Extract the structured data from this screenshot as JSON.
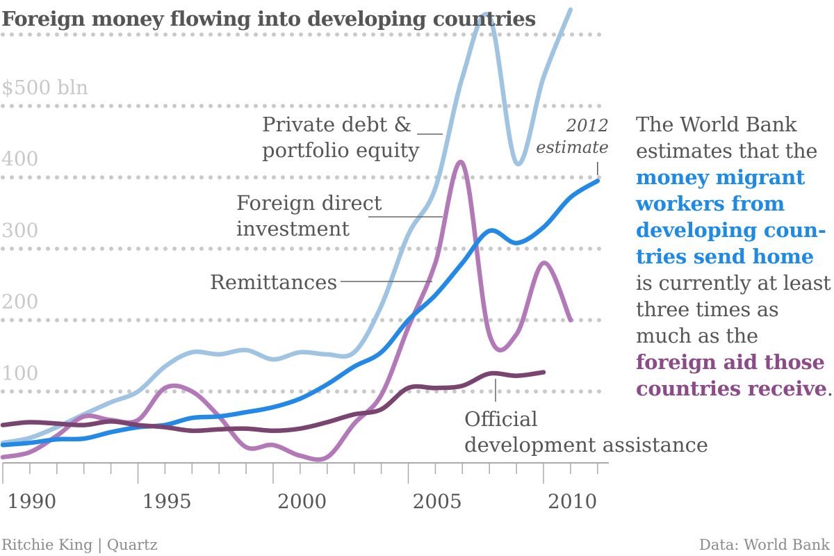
{
  "title": "Foreign money flowing into developing countries",
  "chart_data": {
    "type": "line",
    "title": "Foreign money flowing into developing countries",
    "xlim": [
      1990,
      2012.5
    ],
    "ylim": [
      0,
      630
    ],
    "y_ticks": [
      {
        "value": 100,
        "label": "100"
      },
      {
        "value": 200,
        "label": "200"
      },
      {
        "value": 300,
        "label": "300"
      },
      {
        "value": 400,
        "label": "400"
      },
      {
        "value": 500,
        "label": "$500 bln"
      }
    ],
    "x_ticks": [
      1990,
      1995,
      2000,
      2005,
      2010
    ],
    "gridlines": [
      100,
      200,
      300,
      400,
      500,
      600
    ],
    "grid": "dotted horizontal",
    "series": [
      {
        "name": "Private debt & portfolio equity",
        "color": "#9fc3e2",
        "x": [
          1990,
          1991,
          1992,
          1993,
          1994,
          1995,
          1996,
          1997,
          1998,
          1999,
          2000,
          2001,
          2002,
          2003,
          2004,
          2005,
          2006,
          2007,
          2008,
          2009,
          2010,
          2011
        ],
        "y": [
          28,
          35,
          50,
          68,
          85,
          100,
          135,
          155,
          152,
          158,
          145,
          155,
          152,
          155,
          220,
          320,
          385,
          540,
          625,
          420,
          540,
          635
        ]
      },
      {
        "name": "Foreign direct investment",
        "color": "#b378b8",
        "x": [
          1990,
          1991,
          1992,
          1993,
          1994,
          1995,
          1996,
          1997,
          1998,
          1999,
          2000,
          2001,
          2002,
          2003,
          2004,
          2005,
          2006,
          2007,
          2008,
          2009,
          2010,
          2011
        ],
        "y": [
          8,
          15,
          38,
          65,
          60,
          60,
          105,
          100,
          65,
          22,
          25,
          10,
          8,
          55,
          95,
          190,
          280,
          420,
          180,
          180,
          280,
          200
        ]
      },
      {
        "name": "Remittances",
        "color": "#2489e6",
        "x": [
          1990,
          1991,
          1992,
          1993,
          1994,
          1995,
          1996,
          1997,
          1998,
          1999,
          2000,
          2001,
          2002,
          2003,
          2004,
          2005,
          2006,
          2007,
          2008,
          2009,
          2010,
          2011,
          2012
        ],
        "y": [
          25,
          28,
          33,
          34,
          43,
          50,
          53,
          63,
          65,
          71,
          78,
          90,
          110,
          135,
          155,
          200,
          235,
          280,
          325,
          308,
          330,
          372,
          395
        ]
      },
      {
        "name": "Official development assistance",
        "color": "#7a4470",
        "x": [
          1990,
          1991,
          1992,
          1993,
          1994,
          1995,
          1996,
          1997,
          1998,
          1999,
          2000,
          2001,
          2002,
          2003,
          2004,
          2005,
          2006,
          2007,
          2008,
          2009,
          2010
        ],
        "y": [
          53,
          57,
          55,
          53,
          58,
          53,
          50,
          45,
          47,
          48,
          45,
          48,
          57,
          68,
          75,
          105,
          105,
          108,
          125,
          122,
          127
        ]
      }
    ],
    "series_labels": [
      {
        "text": [
          "Private debt &",
          "portfolio equity"
        ],
        "x": 2006.5,
        "y": 460
      },
      {
        "text": [
          "Foreign direct",
          "investment"
        ],
        "x": 2006.3,
        "y": 350
      },
      {
        "text": [
          "Remittances"
        ],
        "x": 2006.0,
        "y": 250
      },
      {
        "text": [
          "Official",
          "development assistance"
        ],
        "x": 2008.5,
        "y": 122
      }
    ],
    "annotations": [
      {
        "text": [
          "2012",
          "estimate"
        ],
        "x": 2012,
        "y": 395
      }
    ]
  },
  "annotation": {
    "part1": "The World Bank estimates that the",
    "highlight1": "money migrant workers from developing coun­tries send home",
    "part2": "is currently at least three times as much as the",
    "highlight2": "foreign aid those countries receive",
    "part3": "."
  },
  "footer": {
    "byline": "Ritchie King | Quartz",
    "source": "Data: World Bank"
  }
}
